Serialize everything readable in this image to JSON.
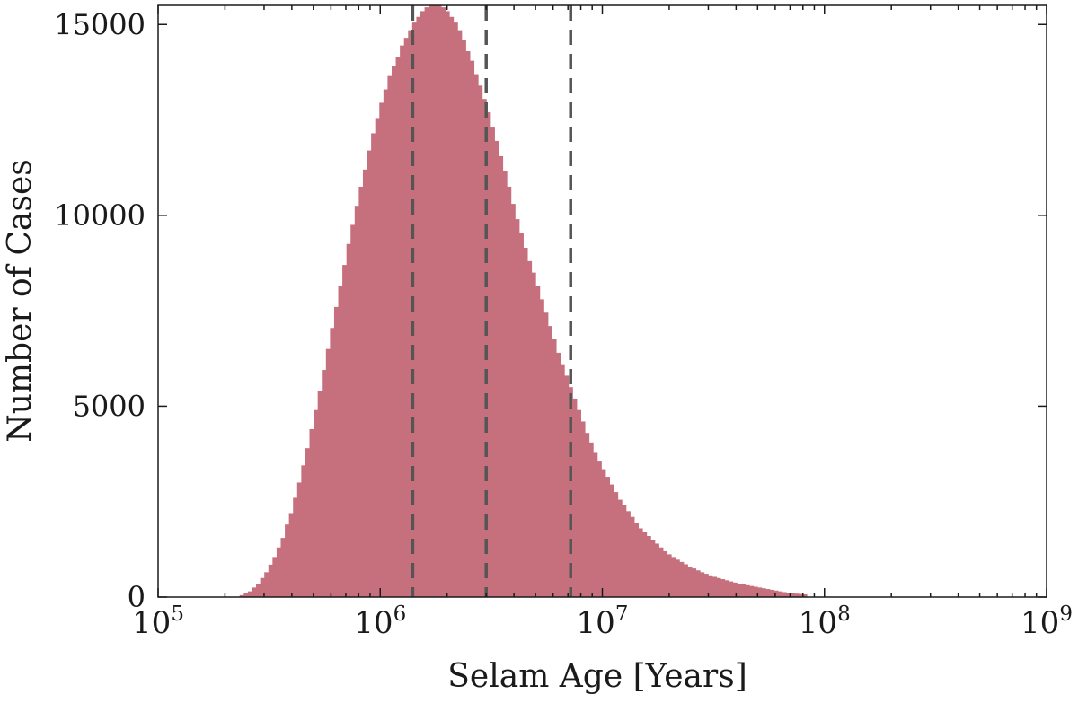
{
  "chart_data": {
    "type": "bar",
    "title": "",
    "xlabel": "Selam Age [Years]",
    "ylabel": "Number of Cases",
    "x_scale": "log",
    "xlim": [
      100000,
      1000000000
    ],
    "ylim": [
      0,
      15500
    ],
    "grid": false,
    "legend": "none",
    "bar_color": "#c6707e",
    "x_ticks": [
      {
        "value": 100000,
        "base": "10",
        "exp": "5"
      },
      {
        "value": 1000000,
        "base": "10",
        "exp": "6"
      },
      {
        "value": 10000000,
        "base": "10",
        "exp": "7"
      },
      {
        "value": 100000000,
        "base": "10",
        "exp": "8"
      },
      {
        "value": 1000000000,
        "base": "10",
        "exp": "9"
      }
    ],
    "y_ticks": [
      {
        "value": 0,
        "label": "0"
      },
      {
        "value": 5000,
        "label": "5000"
      },
      {
        "value": 10000,
        "label": "10000"
      },
      {
        "value": 15000,
        "label": "15000"
      }
    ],
    "vlines": {
      "color": "#555555",
      "style": "dashed",
      "x": [
        1400000,
        3000000,
        7200000
      ]
    },
    "histogram": {
      "bin_log10_start": 5.33,
      "bin_log10_width": 0.0185,
      "counts": [
        0,
        0,
        50,
        100,
        150,
        250,
        350,
        500,
        650,
        850,
        1050,
        1300,
        1550,
        1900,
        2200,
        2600,
        3000,
        3450,
        3900,
        4400,
        4900,
        5400,
        5950,
        6500,
        7050,
        7600,
        8150,
        8700,
        9250,
        9750,
        10250,
        10750,
        11200,
        11700,
        12150,
        12550,
        12950,
        13300,
        13650,
        13900,
        14150,
        14450,
        14650,
        14850,
        15050,
        15200,
        15350,
        15450,
        15500,
        15500,
        15500,
        15450,
        15350,
        15200,
        15050,
        14850,
        14600,
        14300,
        14050,
        13700,
        13400,
        13050,
        12700,
        12300,
        11950,
        11550,
        11150,
        10750,
        10300,
        9900,
        9550,
        9150,
        8800,
        8500,
        8150,
        7800,
        7450,
        7100,
        6750,
        6400,
        6100,
        5800,
        5500,
        5200,
        4900,
        4600,
        4300,
        4050,
        3800,
        3550,
        3350,
        3150,
        2950,
        2750,
        2550,
        2400,
        2250,
        2100,
        1950,
        1800,
        1700,
        1600,
        1500,
        1400,
        1300,
        1200,
        1120,
        1050,
        980,
        920,
        860,
        800,
        750,
        700,
        650,
        610,
        570,
        530,
        500,
        470,
        440,
        410,
        380,
        350,
        330,
        310,
        290,
        270,
        250,
        230,
        210,
        190,
        170,
        150,
        130,
        110,
        100,
        90,
        80,
        70
      ]
    }
  }
}
